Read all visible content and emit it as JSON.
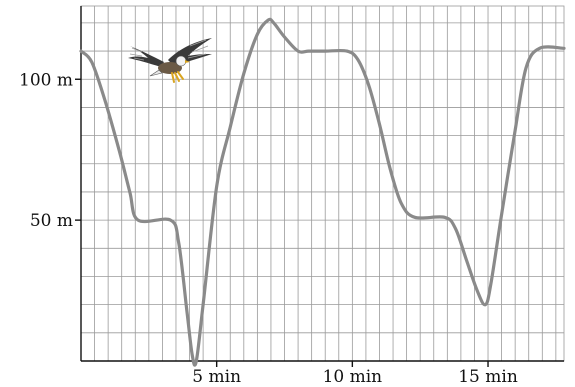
{
  "chart_data": {
    "type": "line",
    "title": "",
    "xlabel": "",
    "ylabel": "",
    "xlim": [
      0,
      17.8
    ],
    "ylim": [
      0,
      126
    ],
    "grid": true,
    "x_unit": "min",
    "y_unit": "m",
    "x_ticks": [
      {
        "value": 5,
        "label": "5 min"
      },
      {
        "value": 10,
        "label": "10 min"
      },
      {
        "value": 15,
        "label": "15 min"
      }
    ],
    "y_ticks": [
      {
        "value": 50,
        "label": "50 m"
      },
      {
        "value": 100,
        "label": "100 m"
      }
    ],
    "series": [
      {
        "x": [
          0,
          0.4,
          0.9,
          1.4,
          1.8,
          2.1,
          3.3,
          3.6,
          3.9,
          4.1,
          4.25,
          4.5,
          5.0,
          5.5,
          6.0,
          6.5,
          6.9,
          7.1,
          7.5,
          8.0,
          8.4,
          9.0,
          9.8,
          10.2,
          10.6,
          11.0,
          11.4,
          11.8,
          12.3,
          13.4,
          13.8,
          14.2,
          14.6,
          14.9,
          15.1,
          15.5,
          16.0,
          16.4,
          16.9,
          17.8
        ],
        "y": [
          110,
          106,
          92,
          75,
          60,
          50,
          50,
          42,
          18,
          2,
          0,
          20,
          62,
          83,
          102,
          116,
          121,
          120,
          115,
          110,
          110,
          110,
          110,
          107,
          98,
          84,
          68,
          56,
          51,
          51,
          47,
          36,
          25,
          20,
          27,
          52,
          82,
          104,
          111,
          111
        ]
      }
    ],
    "annotations": [
      {
        "type": "image",
        "depicts": "eagle-in-flight"
      }
    ]
  },
  "icons": {
    "eagle": "eagle-icon"
  }
}
